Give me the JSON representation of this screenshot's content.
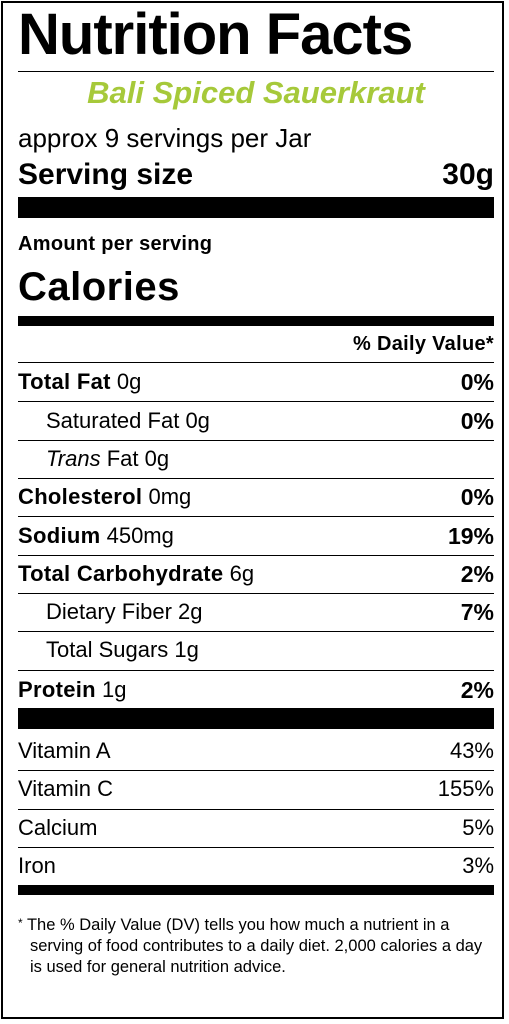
{
  "label": {
    "title": "Nutrition Facts",
    "product_name": "Bali Spiced Sauerkraut",
    "servings_per_container": "approx 9 servings per Jar",
    "serving_size_label": "Serving size",
    "serving_size_value": "30g",
    "amount_per_serving": "Amount per serving",
    "calories_label": "Calories",
    "daily_value_header": "% Daily Value*",
    "nutrients": [
      {
        "name": "Total Fat",
        "amount": "0g",
        "dv": "0%"
      },
      {
        "name": "Saturated Fat",
        "amount": "0g",
        "dv": "0%"
      },
      {
        "name_italic": "Trans",
        "name": "Fat",
        "amount": "0g",
        "dv": ""
      },
      {
        "name": "Cholesterol",
        "amount": "0mg",
        "dv": "0%"
      },
      {
        "name": "Sodium",
        "amount": "450mg",
        "dv": "19%"
      },
      {
        "name": "Total Carbohydrate",
        "amount": "6g",
        "dv": "2%"
      },
      {
        "name": "Dietary Fiber",
        "amount": "2g",
        "dv": "7%"
      },
      {
        "name": "Total Sugars",
        "amount": "1g",
        "dv": ""
      },
      {
        "name": "Protein",
        "amount": "1g",
        "dv": "2%"
      }
    ],
    "vitamins": [
      {
        "name": "Vitamin A",
        "dv": "43%"
      },
      {
        "name": "Vitamin C",
        "dv": "155%"
      },
      {
        "name": "Calcium",
        "dv": "5%"
      },
      {
        "name": "Iron",
        "dv": "3%"
      }
    ],
    "footnote_star": "*",
    "footnote": "The % Daily Value (DV) tells you how much a nutrient in a serving of food contributes to a daily diet. 2,000 calories a day is used for general nutrition advice."
  },
  "colors": {
    "product_name": "#a6c93a",
    "ink": "#000000",
    "background": "#ffffff"
  }
}
